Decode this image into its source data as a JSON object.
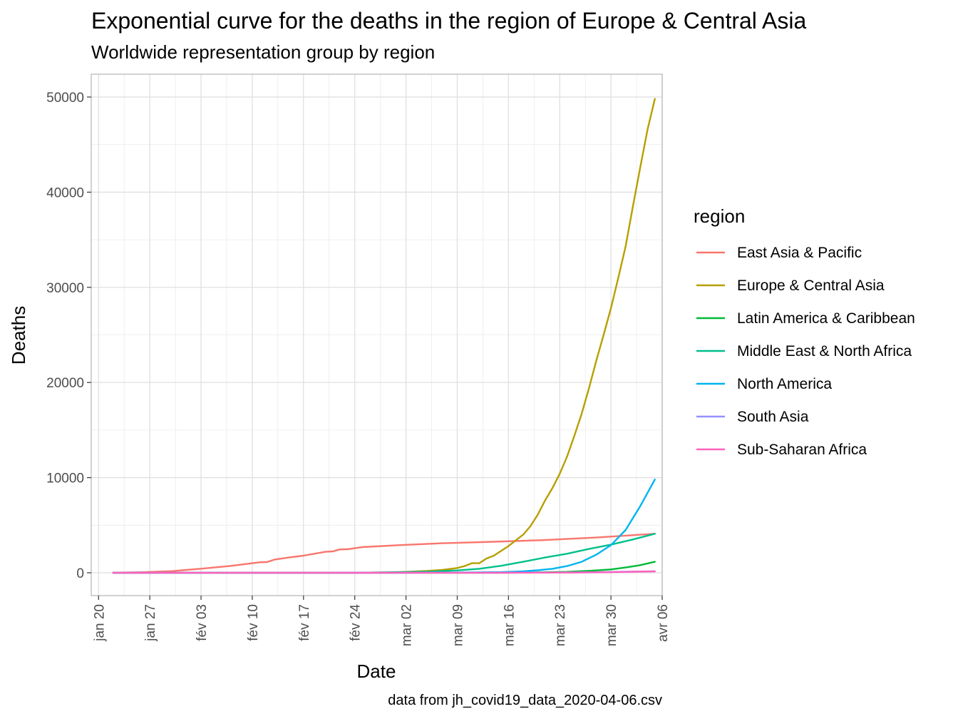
{
  "chart_data": {
    "type": "line",
    "title": "Exponential curve for the deaths in the region of Europe & Central Asia",
    "subtitle": "Worldwide representation group by region",
    "xlabel": "Date",
    "ylabel": "Deaths",
    "caption": "data from jh_covid19_data_2020-04-06.csv",
    "x_range": [
      "2020-01-19",
      "2020-04-06"
    ],
    "ylim": [
      -2400,
      52400
    ],
    "grid": true,
    "legend_position": "right",
    "legend_title": "region",
    "x_ticks": [
      {
        "date": "2020-01-20",
        "label": "jan 20"
      },
      {
        "date": "2020-01-27",
        "label": "jan 27"
      },
      {
        "date": "2020-02-03",
        "label": "fév 03"
      },
      {
        "date": "2020-02-10",
        "label": "fév 10"
      },
      {
        "date": "2020-02-17",
        "label": "fév 17"
      },
      {
        "date": "2020-02-24",
        "label": "fév 24"
      },
      {
        "date": "2020-03-02",
        "label": "mar 02"
      },
      {
        "date": "2020-03-09",
        "label": "mar 09"
      },
      {
        "date": "2020-03-16",
        "label": "mar 16"
      },
      {
        "date": "2020-03-23",
        "label": "mar 23"
      },
      {
        "date": "2020-03-30",
        "label": "mar 30"
      },
      {
        "date": "2020-04-06",
        "label": "avr 06"
      }
    ],
    "y_ticks": [
      {
        "value": 0,
        "label": "0"
      },
      {
        "value": 10000,
        "label": "10000"
      },
      {
        "value": 20000,
        "label": "20000"
      },
      {
        "value": 30000,
        "label": "30000"
      },
      {
        "value": 40000,
        "label": "40000"
      },
      {
        "value": 50000,
        "label": "50000"
      }
    ],
    "series": [
      {
        "name": "East Asia & Pacific",
        "color": "#F8766D",
        "points": [
          [
            "2020-01-22",
            17
          ],
          [
            "2020-01-26",
            56
          ],
          [
            "2020-01-30",
            170
          ],
          [
            "2020-02-03",
            426
          ],
          [
            "2020-02-07",
            720
          ],
          [
            "2020-02-11",
            1100
          ],
          [
            "2020-02-12",
            1120
          ],
          [
            "2020-02-13",
            1380
          ],
          [
            "2020-02-15",
            1600
          ],
          [
            "2020-02-17",
            1800
          ],
          [
            "2020-02-20",
            2200
          ],
          [
            "2020-02-21",
            2250
          ],
          [
            "2020-02-22",
            2460
          ],
          [
            "2020-02-23",
            2470
          ],
          [
            "2020-02-25",
            2700
          ],
          [
            "2020-03-01",
            2900
          ],
          [
            "2020-03-07",
            3100
          ],
          [
            "2020-03-14",
            3260
          ],
          [
            "2020-03-21",
            3440
          ],
          [
            "2020-03-28",
            3700
          ],
          [
            "2020-04-05",
            4100
          ]
        ]
      },
      {
        "name": "Europe & Central Asia",
        "color": "#B79F00",
        "points": [
          [
            "2020-01-22",
            0
          ],
          [
            "2020-02-24",
            10
          ],
          [
            "2020-02-28",
            40
          ],
          [
            "2020-03-02",
            100
          ],
          [
            "2020-03-05",
            200
          ],
          [
            "2020-03-07",
            300
          ],
          [
            "2020-03-09",
            500
          ],
          [
            "2020-03-10",
            700
          ],
          [
            "2020-03-11",
            1000
          ],
          [
            "2020-03-12",
            1000
          ],
          [
            "2020-03-13",
            1500
          ],
          [
            "2020-03-14",
            1800
          ],
          [
            "2020-03-15",
            2300
          ],
          [
            "2020-03-16",
            2800
          ],
          [
            "2020-03-17",
            3400
          ],
          [
            "2020-03-18",
            4000
          ],
          [
            "2020-03-19",
            4900
          ],
          [
            "2020-03-20",
            6100
          ],
          [
            "2020-03-21",
            7600
          ],
          [
            "2020-03-22",
            8900
          ],
          [
            "2020-03-23",
            10400
          ],
          [
            "2020-03-24",
            12200
          ],
          [
            "2020-03-25",
            14400
          ],
          [
            "2020-03-26",
            16700
          ],
          [
            "2020-03-27",
            19400
          ],
          [
            "2020-03-28",
            22300
          ],
          [
            "2020-03-29",
            25000
          ],
          [
            "2020-03-30",
            27800
          ],
          [
            "2020-03-31",
            31000
          ],
          [
            "2020-04-01",
            34300
          ],
          [
            "2020-04-02",
            38500
          ],
          [
            "2020-04-03",
            42600
          ],
          [
            "2020-04-04",
            46600
          ],
          [
            "2020-04-05",
            49800
          ]
        ]
      },
      {
        "name": "Latin America & Caribbean",
        "color": "#00BA38",
        "points": [
          [
            "2020-01-22",
            0
          ],
          [
            "2020-03-16",
            10
          ],
          [
            "2020-03-20",
            40
          ],
          [
            "2020-03-24",
            100
          ],
          [
            "2020-03-27",
            200
          ],
          [
            "2020-03-30",
            350
          ],
          [
            "2020-04-01",
            550
          ],
          [
            "2020-04-03",
            800
          ],
          [
            "2020-04-05",
            1150
          ]
        ]
      },
      {
        "name": "Middle East & North Africa",
        "color": "#00C08B",
        "points": [
          [
            "2020-01-22",
            0
          ],
          [
            "2020-02-20",
            0
          ],
          [
            "2020-02-26",
            20
          ],
          [
            "2020-03-01",
            60
          ],
          [
            "2020-03-05",
            120
          ],
          [
            "2020-03-09",
            250
          ],
          [
            "2020-03-12",
            420
          ],
          [
            "2020-03-15",
            730
          ],
          [
            "2020-03-18",
            1150
          ],
          [
            "2020-03-21",
            1600
          ],
          [
            "2020-03-24",
            2000
          ],
          [
            "2020-03-27",
            2500
          ],
          [
            "2020-03-30",
            2950
          ],
          [
            "2020-04-02",
            3500
          ],
          [
            "2020-04-05",
            4100
          ]
        ]
      },
      {
        "name": "North America",
        "color": "#00B4F0",
        "points": [
          [
            "2020-01-22",
            0
          ],
          [
            "2020-03-01",
            2
          ],
          [
            "2020-03-10",
            30
          ],
          [
            "2020-03-15",
            70
          ],
          [
            "2020-03-18",
            150
          ],
          [
            "2020-03-20",
            260
          ],
          [
            "2020-03-22",
            420
          ],
          [
            "2020-03-24",
            700
          ],
          [
            "2020-03-26",
            1150
          ],
          [
            "2020-03-28",
            1900
          ],
          [
            "2020-03-30",
            2900
          ],
          [
            "2020-04-01",
            4500
          ],
          [
            "2020-04-03",
            7000
          ],
          [
            "2020-04-05",
            9800
          ]
        ]
      },
      {
        "name": "South Asia",
        "color": "#9590FF",
        "points": [
          [
            "2020-01-22",
            0
          ],
          [
            "2020-03-15",
            5
          ],
          [
            "2020-03-25",
            40
          ],
          [
            "2020-03-30",
            90
          ],
          [
            "2020-04-05",
            150
          ]
        ]
      },
      {
        "name": "Sub-Saharan Africa",
        "color": "#FF62BC",
        "points": [
          [
            "2020-01-22",
            0
          ],
          [
            "2020-03-15",
            0
          ],
          [
            "2020-03-25",
            20
          ],
          [
            "2020-03-30",
            60
          ],
          [
            "2020-04-05",
            150
          ]
        ]
      }
    ]
  }
}
